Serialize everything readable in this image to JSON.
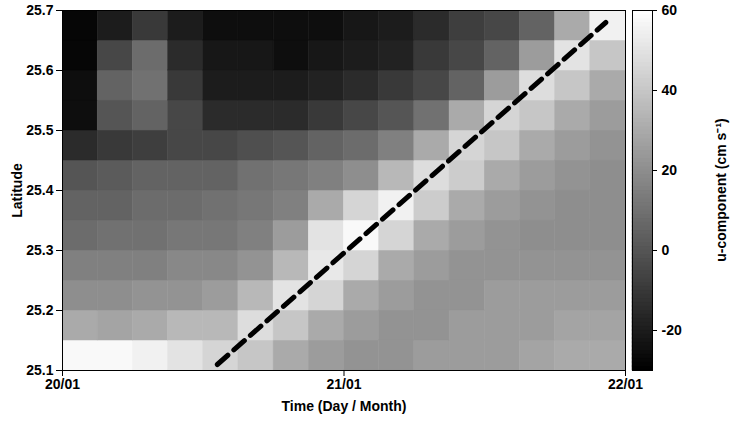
{
  "chart_data": {
    "type": "heatmap",
    "xlabel": "Time (Day / Month)",
    "ylabel": "Latitude",
    "xlim": [
      20,
      22
    ],
    "xticks": [
      {
        "value": 20,
        "label": "20/01"
      },
      {
        "value": 21,
        "label": "21/01"
      },
      {
        "value": 22,
        "label": "22/01"
      }
    ],
    "ylim": [
      25.1,
      25.7
    ],
    "yticks": [
      25.1,
      25.2,
      25.3,
      25.4,
      25.5,
      25.6,
      25.7
    ],
    "x": [
      20.0625,
      20.1875,
      20.3125,
      20.4375,
      20.5625,
      20.6875,
      20.8125,
      20.9375,
      21.0625,
      21.1875,
      21.3125,
      21.4375,
      21.5625,
      21.6875,
      21.8125,
      21.9375
    ],
    "y": [
      25.125,
      25.175,
      25.225,
      25.275,
      25.325,
      25.375,
      25.425,
      25.475,
      25.525,
      25.575,
      25.625,
      25.675
    ],
    "values": [
      [
        58,
        58,
        55,
        50,
        45,
        40,
        30,
        25,
        22,
        22,
        25,
        25,
        25,
        28,
        30,
        30
      ],
      [
        30,
        28,
        30,
        35,
        35,
        48,
        40,
        30,
        25,
        22,
        22,
        25,
        25,
        25,
        28,
        28
      ],
      [
        20,
        20,
        22,
        22,
        25,
        35,
        50,
        45,
        30,
        25,
        22,
        22,
        25,
        25,
        25,
        25
      ],
      [
        15,
        15,
        15,
        18,
        18,
        22,
        35,
        52,
        45,
        30,
        25,
        22,
        22,
        22,
        22,
        22
      ],
      [
        8,
        10,
        10,
        12,
        12,
        15,
        25,
        50,
        58,
        45,
        30,
        25,
        22,
        20,
        20,
        20
      ],
      [
        5,
        5,
        8,
        8,
        10,
        12,
        15,
        30,
        45,
        55,
        42,
        30,
        25,
        22,
        20,
        20
      ],
      [
        0,
        2,
        5,
        5,
        5,
        10,
        12,
        15,
        20,
        35,
        48,
        42,
        30,
        25,
        22,
        20
      ],
      [
        -15,
        -10,
        -8,
        -5,
        -5,
        -2,
        0,
        5,
        8,
        15,
        30,
        45,
        40,
        30,
        25,
        22
      ],
      [
        -25,
        0,
        5,
        -5,
        -15,
        -15,
        -15,
        -10,
        -5,
        0,
        10,
        30,
        45,
        40,
        30,
        25
      ],
      [
        -25,
        5,
        10,
        -10,
        -20,
        -20,
        -20,
        -18,
        -15,
        -10,
        -5,
        5,
        25,
        48,
        40,
        30
      ],
      [
        -28,
        -5,
        8,
        -15,
        -22,
        -22,
        -25,
        -22,
        -20,
        -18,
        -10,
        -5,
        5,
        25,
        50,
        40
      ],
      [
        -28,
        -20,
        -10,
        -20,
        -25,
        -25,
        -25,
        -25,
        -22,
        -20,
        -15,
        -8,
        -5,
        5,
        30,
        55
      ]
    ],
    "lines": [
      {
        "x": [
          20.55,
          21.93
        ],
        "y": [
          25.11,
          25.68
        ],
        "color": "#000000",
        "line_style": "dashed"
      }
    ],
    "colorbar": {
      "label": "u-component (cm s⁻¹)",
      "range": [
        -30,
        60
      ],
      "ticks": [
        -20,
        0,
        20,
        40,
        60
      ]
    }
  }
}
